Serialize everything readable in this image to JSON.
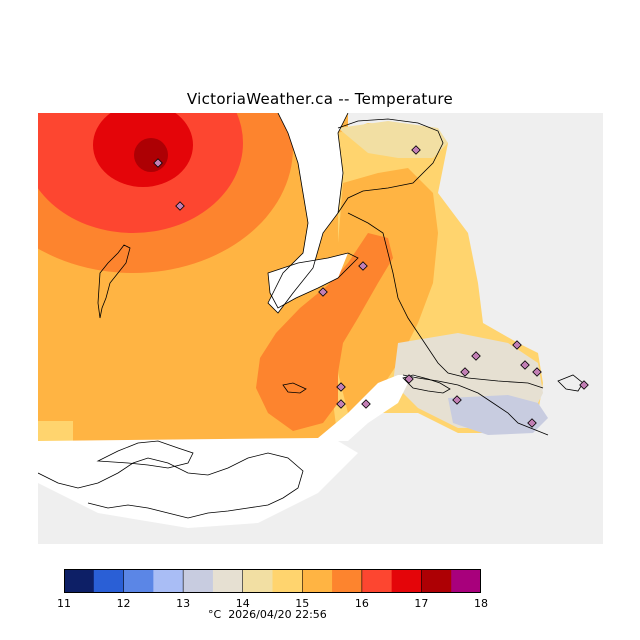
{
  "title": "VictoriaWeather.ca -- Temperature",
  "units": "°C",
  "timestamp": "2026/04/20 22:56",
  "legend": {
    "colors": [
      "#0d1f66",
      "#2a5fd6",
      "#5b86e6",
      "#a9bdf5",
      "#c8cce0",
      "#e6e0d2",
      "#f2dfa3",
      "#ffd46e",
      "#ffb443",
      "#fd842e",
      "#fd4630",
      "#e40509",
      "#ad0004",
      "#a8007c"
    ],
    "ticks": [
      "11",
      "12",
      "13",
      "14",
      "15",
      "16",
      "17",
      "18"
    ]
  },
  "map_colors": {
    "land": "#efefef",
    "water": "#ffffff",
    "station": "#c27fb5"
  },
  "temperature_field": {
    "min_c": 12.5,
    "max_c": 17.5,
    "hotspot_c": 17.5,
    "coolest_c": 12.5
  }
}
